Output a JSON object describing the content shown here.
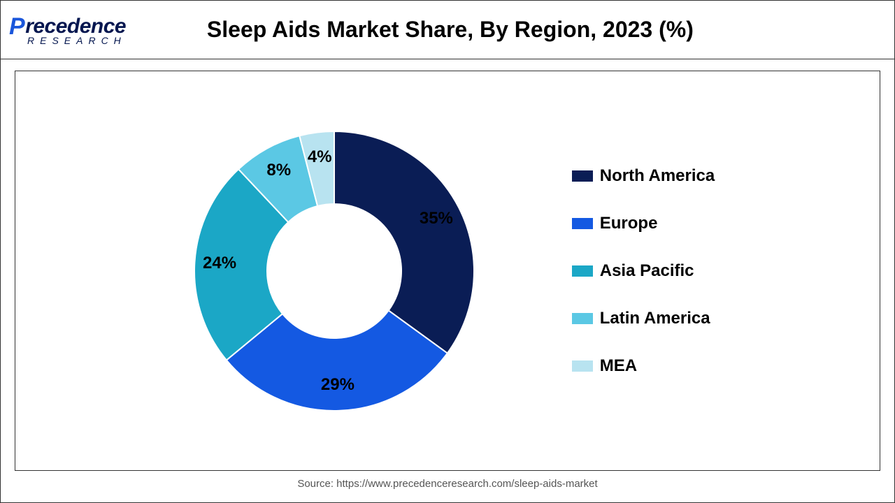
{
  "logo": {
    "main_first_letter": "P",
    "main_rest": "recedence",
    "sub": "RESEARCH"
  },
  "chart": {
    "title": "Sleep Aids Market Share, By Region, 2023 (%)",
    "type": "donut",
    "inner_radius_ratio": 0.48,
    "outer_radius": 200,
    "start_angle_deg": -90,
    "series": [
      {
        "label": "North America",
        "value": 35,
        "display": "35%",
        "color": "#0a1d55"
      },
      {
        "label": "Europe",
        "value": 29,
        "display": "29%",
        "color": "#1459e2"
      },
      {
        "label": "Asia Pacific",
        "value": 24,
        "display": "24%",
        "color": "#1ba7c6"
      },
      {
        "label": "Latin America",
        "value": 8,
        "display": "8%",
        "color": "#5bc8e4"
      },
      {
        "label": "MEA",
        "value": 4,
        "display": "4%",
        "color": "#b8e3f0"
      }
    ],
    "background_color": "#ffffff",
    "slice_border_color": "#ffffff",
    "slice_border_width": 2,
    "label_fontsize": 24,
    "label_fontweight": 700,
    "label_radius_ratio": 0.82,
    "legend_fontsize": 24
  },
  "source_text": "Source: https://www.precedenceresearch.com/sleep-aids-market"
}
